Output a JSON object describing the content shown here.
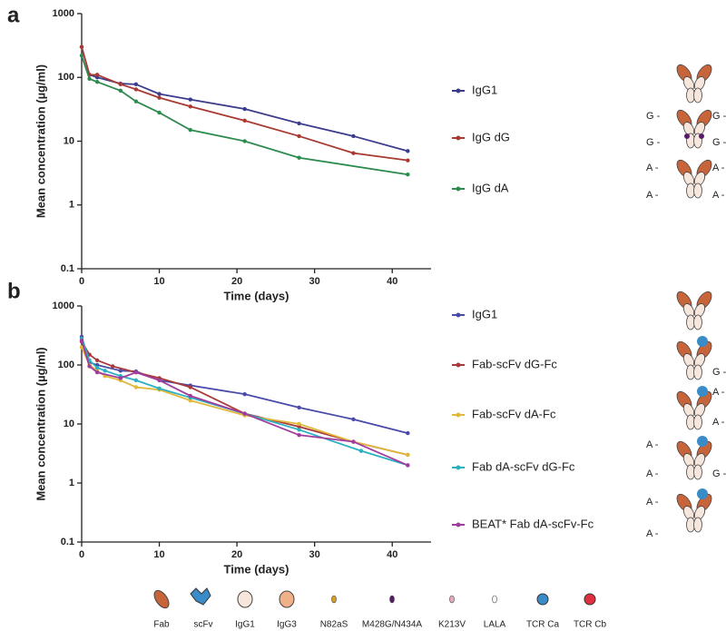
{
  "chart_data": [
    {
      "type": "line",
      "panel": "a",
      "ylabel": "Mean concentration (µg/ml)",
      "xlabel": "Time (days)",
      "xlim": [
        0,
        45
      ],
      "xticks": [
        0,
        10,
        20,
        30,
        40
      ],
      "ylim": [
        0.1,
        1000
      ],
      "yticks": [
        0.1,
        1,
        10,
        100,
        1000
      ],
      "log_y": true,
      "series": [
        {
          "name": "IgG1",
          "color": "#3c3c8c",
          "x": [
            0,
            1,
            2,
            5,
            7,
            10,
            14,
            21,
            28,
            35,
            42
          ],
          "values": [
            300,
            110,
            100,
            80,
            78,
            55,
            45,
            32,
            19,
            12,
            7
          ]
        },
        {
          "name": "IgG dG",
          "color": "#a83a32",
          "x": [
            0,
            1,
            2,
            5,
            7,
            10,
            14,
            21,
            28,
            35,
            42
          ],
          "values": [
            300,
            110,
            110,
            78,
            65,
            48,
            35,
            21,
            12,
            6.5,
            5
          ]
        },
        {
          "name": "IgG dA",
          "color": "#2e8b4f",
          "x": [
            0,
            1,
            2,
            5,
            7,
            10,
            14,
            21,
            28,
            42
          ],
          "values": [
            220,
            95,
            85,
            62,
            42,
            28,
            15,
            10,
            5.5,
            3
          ]
        }
      ]
    },
    {
      "type": "line",
      "panel": "b",
      "ylabel": "Mean concentration (µg/ml)",
      "xlabel": "Time (days)",
      "xlim": [
        0,
        45
      ],
      "xticks": [
        0,
        10,
        20,
        30,
        40
      ],
      "ylim": [
        0.1,
        1000
      ],
      "yticks": [
        0.1,
        1,
        10,
        100,
        1000
      ],
      "log_y": true,
      "series": [
        {
          "name": "IgG1",
          "color": "#4a4aa8",
          "x": [
            0,
            1,
            2,
            5,
            7,
            10,
            14,
            21,
            28,
            35,
            42
          ],
          "values": [
            300,
            110,
            100,
            80,
            78,
            55,
            45,
            32,
            19,
            12,
            7
          ]
        },
        {
          "name": "Fab-scFv dG-Fc",
          "color": "#a83a3a",
          "x": [
            0,
            1,
            2,
            4,
            7,
            10,
            14,
            21,
            28,
            35,
            42
          ],
          "values": [
            250,
            150,
            120,
            95,
            75,
            60,
            42,
            15,
            9,
            5,
            3
          ]
        },
        {
          "name": "Fab-scFv dA-Fc",
          "color": "#e0b83a",
          "x": [
            0,
            1,
            2,
            3,
            5,
            7,
            10,
            14,
            21,
            28,
            35,
            42
          ],
          "values": [
            200,
            100,
            80,
            65,
            55,
            42,
            38,
            25,
            14,
            10,
            5,
            3
          ]
        },
        {
          "name": "Fab dA-scFv dG-Fc",
          "color": "#2ab0c0",
          "x": [
            0,
            1,
            2,
            3,
            5,
            7,
            10,
            14,
            21,
            28,
            36,
            42
          ],
          "values": [
            280,
            120,
            90,
            80,
            65,
            55,
            40,
            28,
            15,
            8,
            3.5,
            2
          ]
        },
        {
          "name": "BEAT* Fab dA-scFv-Fc",
          "color": "#a03c9e",
          "x": [
            0,
            1,
            2,
            5,
            7,
            10,
            14,
            21,
            28,
            35,
            42
          ],
          "values": [
            260,
            95,
            75,
            60,
            75,
            55,
            30,
            15,
            6.5,
            5,
            2
          ]
        }
      ]
    }
  ],
  "site_labels": {
    "g": "G -",
    "a": "A -"
  },
  "structure_legend": [
    "Fab",
    "scFv",
    "IgG1",
    "IgG3",
    "N82aS",
    "M428G/N434A",
    "K213V",
    "LALA",
    "TCR Ca",
    "TCR Cb"
  ]
}
